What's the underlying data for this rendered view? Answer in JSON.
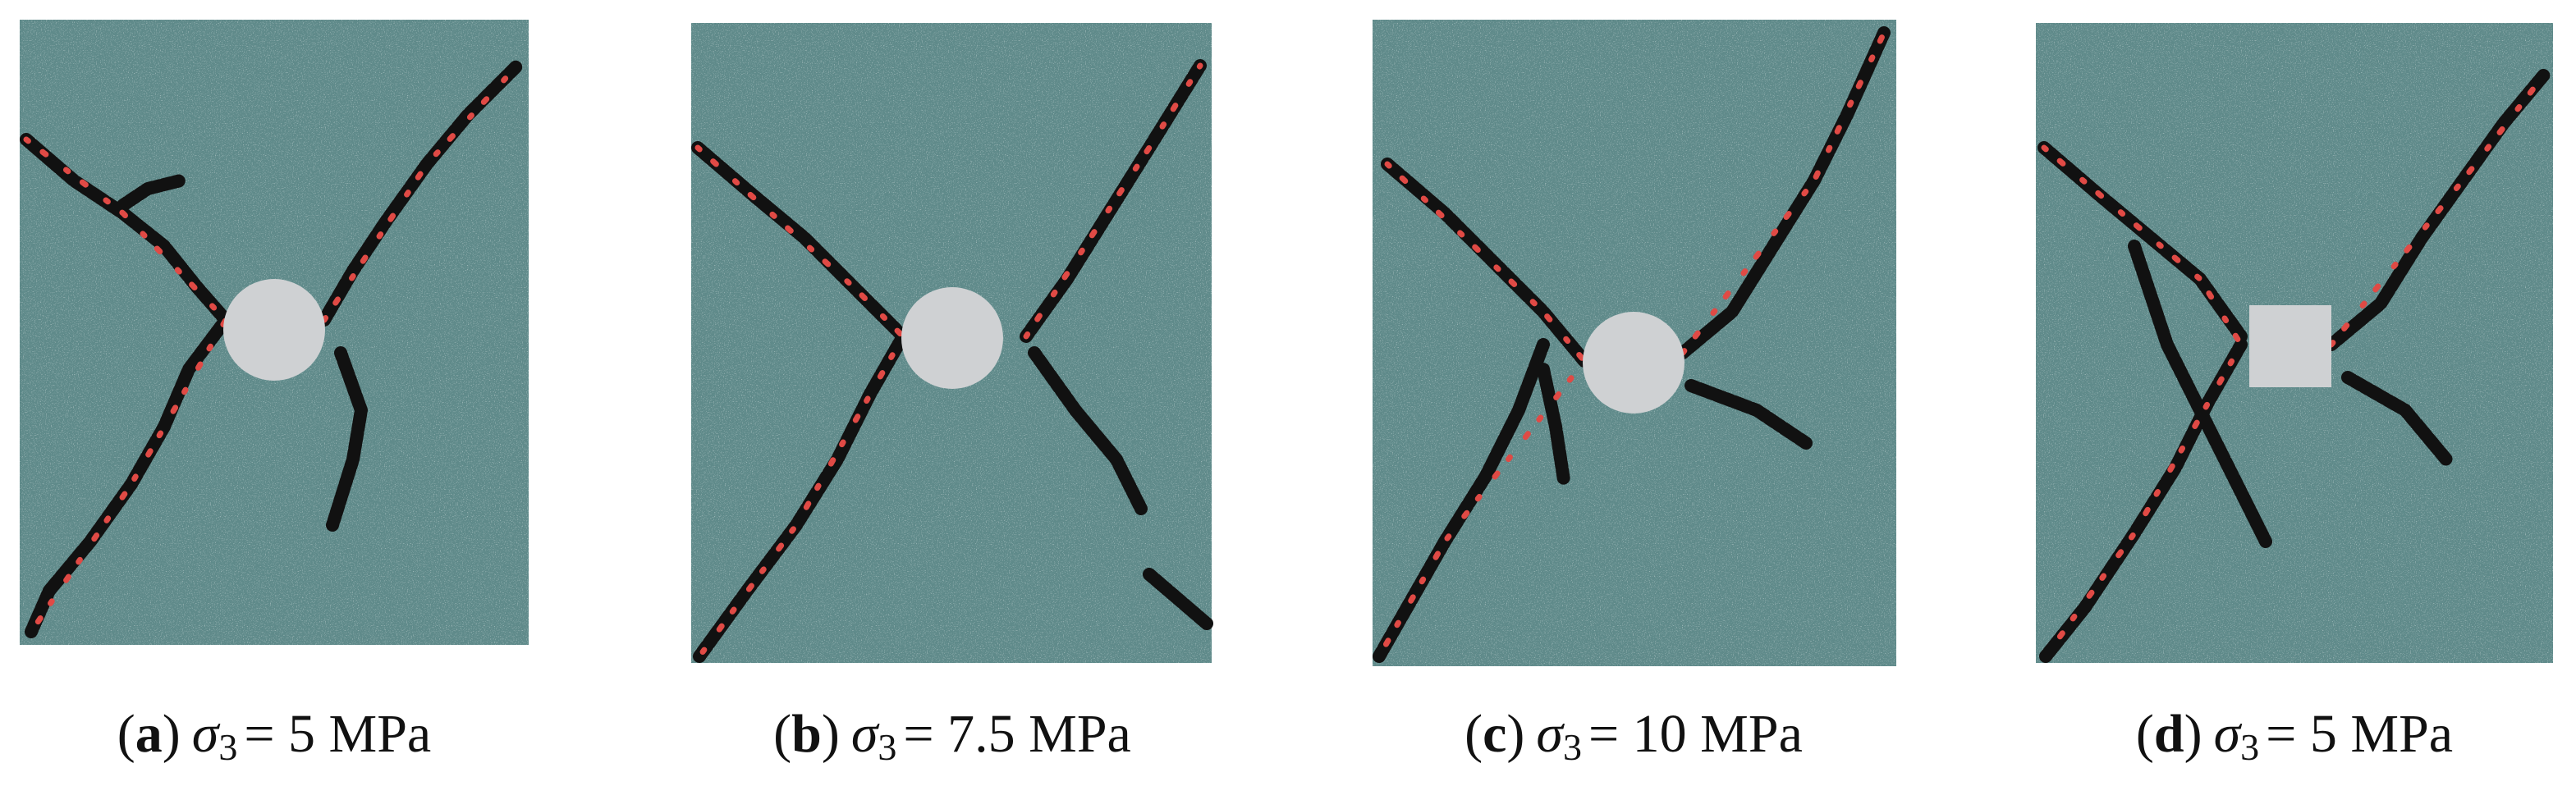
{
  "paren_open": "(",
  "paren_close": ")",
  "panels": [
    {
      "letter": "a",
      "symbol": "σ",
      "subscript": "3",
      "condition": "= 5 MPa"
    },
    {
      "letter": "b",
      "symbol": "σ",
      "subscript": "3",
      "condition": "= 7.5 MPa"
    },
    {
      "letter": "c",
      "symbol": "σ",
      "subscript": "3",
      "condition": "= 10 MPa"
    },
    {
      "letter": "d",
      "symbol": "σ",
      "subscript": "3",
      "condition": "= 5 MPa"
    }
  ]
}
